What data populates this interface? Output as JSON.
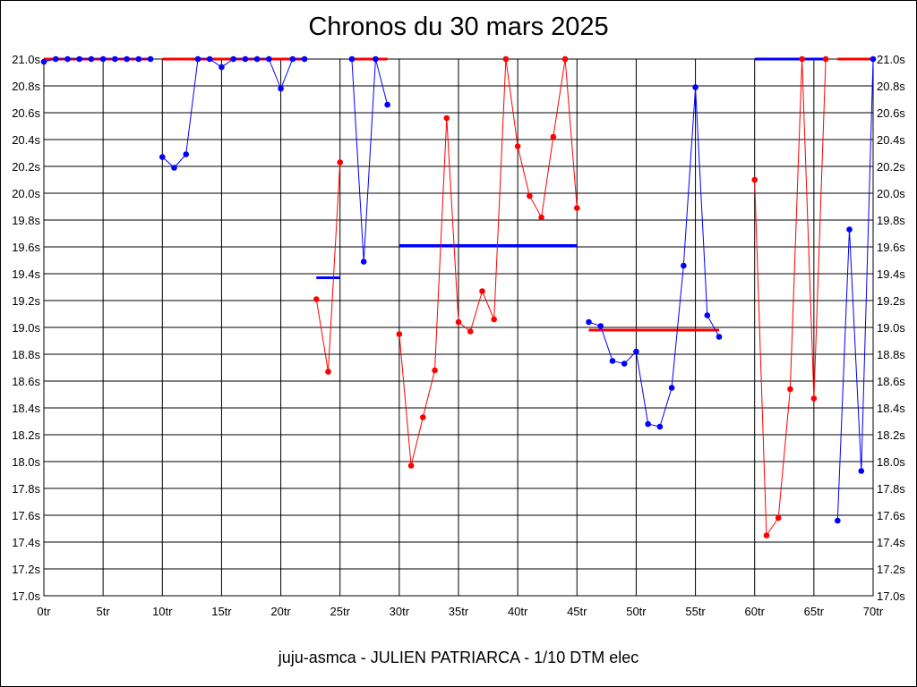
{
  "chart_data": {
    "type": "line",
    "title": "Chronos du 30 mars 2025",
    "subtitle": "juju-asmca - JULIEN PATRIARCA - 1/10 DTM elec",
    "xlabel": "",
    "ylabel": "",
    "xlim": [
      0,
      70
    ],
    "ylim": [
      17.0,
      21.0
    ],
    "grid": true,
    "x_ticks": [
      "0tr",
      "5tr",
      "10tr",
      "15tr",
      "20tr",
      "25tr",
      "30tr",
      "35tr",
      "40tr",
      "45tr",
      "50tr",
      "55tr",
      "60tr",
      "65tr",
      "70tr"
    ],
    "y_ticks": [
      "17.0s",
      "17.2s",
      "17.4s",
      "17.6s",
      "17.8s",
      "18.0s",
      "18.2s",
      "18.4s",
      "18.6s",
      "18.8s",
      "19.0s",
      "19.2s",
      "19.4s",
      "19.6s",
      "19.8s",
      "20.0s",
      "20.2s",
      "20.4s",
      "20.6s",
      "20.8s",
      "21.0s"
    ],
    "colors": {
      "red": "#ff0000",
      "blue": "#0000ff",
      "grid": "#000000"
    },
    "series": [
      {
        "color": "#0000ff",
        "points": [
          [
            0,
            20.98
          ],
          [
            1,
            21.0
          ],
          [
            2,
            21.0
          ],
          [
            3,
            21.0
          ],
          [
            4,
            21.0
          ],
          [
            5,
            21.0
          ],
          [
            6,
            21.0
          ],
          [
            7,
            21.0
          ],
          [
            8,
            21.0
          ],
          [
            9,
            21.0
          ]
        ],
        "avg": {
          "x0": 0,
          "x1": 9,
          "y": 21.0,
          "color": "#ff0000"
        }
      },
      {
        "color": "#0000ff",
        "points": [
          [
            10,
            20.27
          ],
          [
            11,
            20.19
          ],
          [
            12,
            20.29
          ],
          [
            13,
            21.0
          ],
          [
            14,
            21.0
          ],
          [
            15,
            20.94
          ],
          [
            16,
            21.0
          ],
          [
            17,
            21.0
          ],
          [
            18,
            21.0
          ],
          [
            19,
            21.0
          ],
          [
            20,
            20.78
          ],
          [
            21,
            21.0
          ],
          [
            22,
            21.0
          ]
        ],
        "avg": {
          "x0": 10,
          "x1": 22,
          "y": 21.0,
          "color": "#ff0000"
        }
      },
      {
        "color": "#ff0000",
        "points": [
          [
            23,
            19.21
          ],
          [
            24,
            18.67
          ],
          [
            25,
            20.23
          ]
        ],
        "avg": {
          "x0": 23,
          "x1": 25,
          "y": 19.37,
          "color": "#0000ff"
        }
      },
      {
        "color": "#0000ff",
        "points": [
          [
            26,
            21.0
          ],
          [
            27,
            19.49
          ],
          [
            28,
            21.0
          ],
          [
            29,
            20.66
          ]
        ],
        "avg": {
          "x0": 26,
          "x1": 29,
          "y": 21.0,
          "color": "#ff0000"
        }
      },
      {
        "color": "#ff0000",
        "points": [
          [
            30,
            18.95
          ],
          [
            31,
            17.97
          ],
          [
            32,
            18.33
          ],
          [
            33,
            18.68
          ],
          [
            34,
            20.56
          ],
          [
            35,
            19.04
          ],
          [
            36,
            18.97
          ],
          [
            37,
            19.27
          ],
          [
            38,
            19.06
          ],
          [
            39,
            21.0
          ],
          [
            40,
            20.35
          ],
          [
            41,
            19.98
          ],
          [
            42,
            19.82
          ],
          [
            43,
            20.42
          ],
          [
            44,
            21.0
          ],
          [
            45,
            19.89
          ]
        ],
        "avg": {
          "x0": 30,
          "x1": 45,
          "y": 19.61,
          "color": "#0000ff"
        }
      },
      {
        "color": "#0000ff",
        "points": [
          [
            46,
            19.04
          ],
          [
            47,
            19.01
          ],
          [
            48,
            18.75
          ],
          [
            49,
            18.73
          ],
          [
            50,
            18.82
          ],
          [
            51,
            18.28
          ],
          [
            52,
            18.26
          ],
          [
            53,
            18.55
          ],
          [
            54,
            19.46
          ],
          [
            55,
            20.79
          ],
          [
            56,
            19.09
          ],
          [
            57,
            18.93
          ]
        ],
        "avg": {
          "x0": 46,
          "x1": 57,
          "y": 18.98,
          "color": "#ff0000"
        }
      },
      {
        "color": "#ff0000",
        "points": [
          [
            60,
            20.1
          ],
          [
            61,
            17.45
          ],
          [
            62,
            17.58
          ],
          [
            63,
            18.54
          ],
          [
            64,
            21.0
          ],
          [
            65,
            18.47
          ],
          [
            66,
            21.0
          ]
        ],
        "avg": {
          "x0": 60,
          "x1": 66,
          "y": 21.0,
          "color": "#0000ff"
        }
      },
      {
        "color": "#0000ff",
        "points": [
          [
            67,
            17.56
          ],
          [
            68,
            19.73
          ],
          [
            69,
            17.93
          ],
          [
            70,
            21.0
          ]
        ],
        "avg": {
          "x0": 67,
          "x1": 70,
          "y": 21.0,
          "color": "#ff0000"
        }
      }
    ]
  }
}
